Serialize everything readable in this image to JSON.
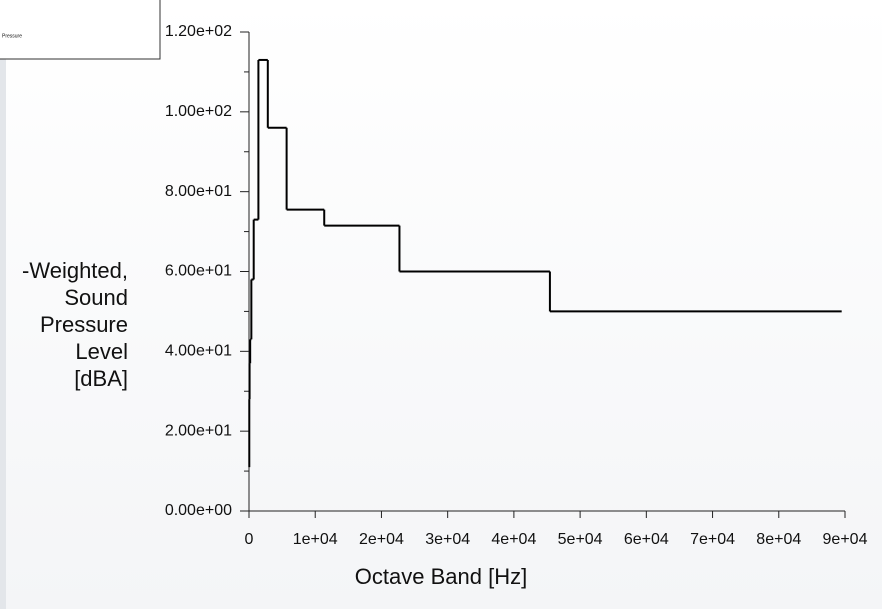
{
  "chart_data": {
    "type": "step",
    "xlabel": "Octave Band [Hz]",
    "ylabel_lines": [
      "-Weighted,",
      "Sound",
      "Pressure",
      "Level",
      "[dBA]"
    ],
    "series": [
      {
        "name": "Pressure",
        "color": "#000000",
        "bins": [
          22,
          44,
          88,
          177,
          355,
          710,
          1420,
          2840,
          5680,
          11360,
          22720,
          45440,
          89500
        ],
        "values": [
          11,
          28,
          37,
          43,
          58,
          73,
          113,
          96,
          75.5,
          71.5,
          60,
          50
        ]
      }
    ],
    "xlim": [
      0,
      90000
    ],
    "xticks": [
      0,
      {
        "value": 10000,
        "label": "1e+04"
      },
      {
        "value": 20000,
        "label": "2e+04"
      },
      {
        "value": 30000,
        "label": "3e+04"
      },
      {
        "value": 40000,
        "label": "4e+04"
      },
      {
        "value": 50000,
        "label": "5e+04"
      },
      {
        "value": 60000,
        "label": "6e+04"
      },
      {
        "value": 70000,
        "label": "7e+04"
      },
      {
        "value": 80000,
        "label": "8e+04"
      },
      {
        "value": 90000,
        "label": "9e+04"
      }
    ],
    "ylim": [
      0,
      120
    ],
    "yticks": [
      {
        "value": 0,
        "label": "0.00e+00"
      },
      {
        "value": 20,
        "label": "2.00e+01"
      },
      {
        "value": 40,
        "label": "4.00e+01"
      },
      {
        "value": 60,
        "label": "6.00e+01"
      },
      {
        "value": 80,
        "label": "8.00e+01"
      },
      {
        "value": 100,
        "label": "1.00e+02"
      },
      {
        "value": 120,
        "label": "1.20e+02"
      }
    ],
    "yminorticks": [
      10,
      30,
      50,
      70,
      90,
      110
    ]
  }
}
